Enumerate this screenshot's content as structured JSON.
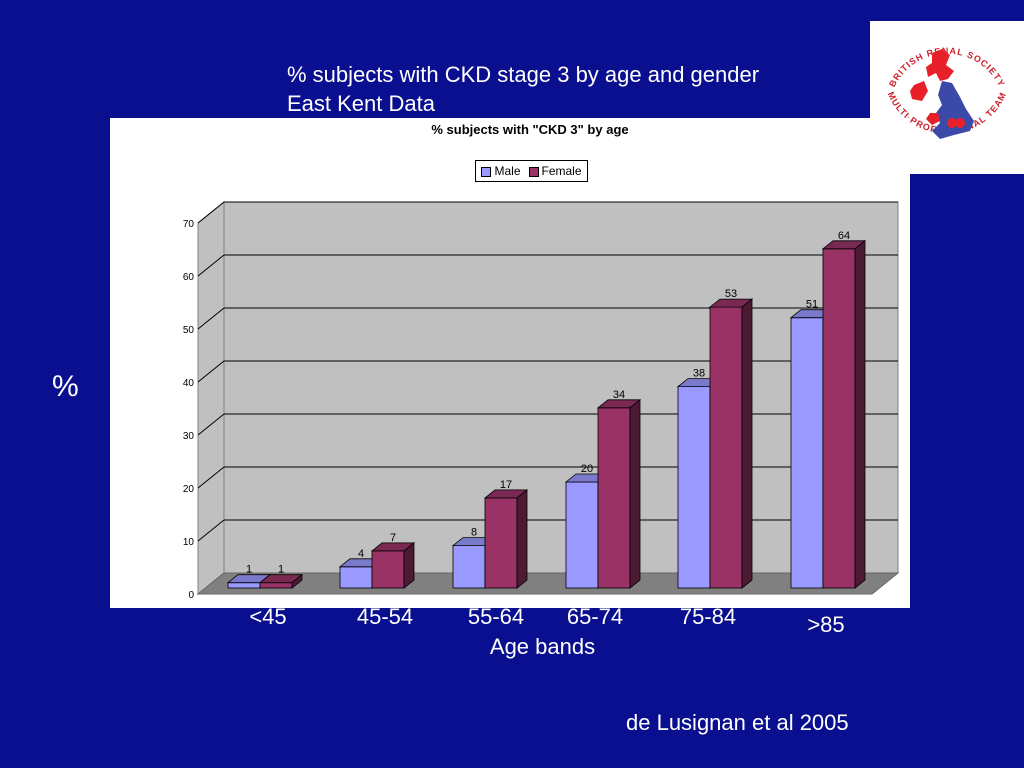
{
  "slide": {
    "title_line1": "% subjects with CKD stage 3 by age and gender",
    "title_line2": "East Kent Data",
    "y_big_label": "%",
    "big_ticks": [
      "70",
      "50",
      "30",
      "10"
    ],
    "x_axis_title": "Age bands",
    "citation": "de Lusignan et al 2005"
  },
  "logo": {
    "text_top": "BRITISH RENAL SOCIETY",
    "text_bottom": "MULTI-PROFESSIONAL TEAM"
  },
  "chart_data": {
    "type": "bar",
    "title": "% subjects with \"CKD 3\" by age",
    "ylabel": "%",
    "xlabel": "Age bands",
    "categories": [
      "<45",
      "45-54",
      "55-64",
      "65-74",
      "75-84",
      ">85"
    ],
    "series": [
      {
        "name": "Male",
        "values": [
          1,
          4,
          8,
          20,
          38,
          51
        ],
        "color": "#9999ff"
      },
      {
        "name": "Female",
        "values": [
          1,
          7,
          17,
          34,
          53,
          64
        ],
        "color": "#993366"
      }
    ],
    "ylim": [
      0,
      70
    ],
    "yticks": [
      "0",
      "10",
      "20",
      "30",
      "40",
      "50",
      "60",
      "70"
    ],
    "grid": true,
    "legend": "top"
  }
}
